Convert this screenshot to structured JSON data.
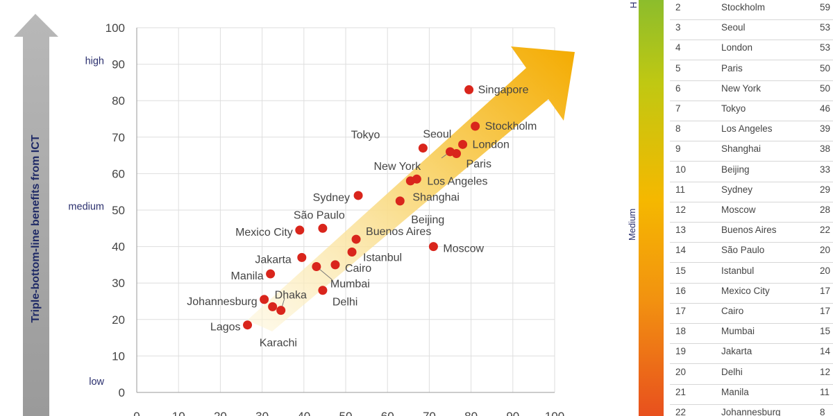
{
  "chart_data": {
    "type": "scatter",
    "ylabel": "Triple-bottom-line benefits from ICT",
    "ylim": [
      0,
      100
    ],
    "xlim": [
      0,
      100
    ],
    "y_ticks": [
      0,
      10,
      20,
      30,
      40,
      50,
      60,
      70,
      80,
      90,
      100
    ],
    "x_ticks": [
      0,
      10,
      20,
      30,
      40,
      50,
      60,
      70,
      80,
      90,
      100
    ],
    "y_level_labels": [
      {
        "text": "high",
        "y": 91
      },
      {
        "text": "medium",
        "y": 51
      },
      {
        "text": "low",
        "y": 3
      }
    ],
    "point_color": "#d9251c",
    "points": [
      {
        "label": "Singapore",
        "x": 79.5,
        "y": 83
      },
      {
        "label": "Stockholm",
        "x": 81,
        "y": 73
      },
      {
        "label": "Seoul",
        "x": 68.5,
        "y": 67
      },
      {
        "label": "London",
        "x": 78,
        "y": 68
      },
      {
        "label": "Paris",
        "x": 76.5,
        "y": 65.5
      },
      {
        "label": "",
        "x": 75,
        "y": 66
      },
      {
        "label": "Tokyo",
        "x": 0,
        "y": 0,
        "hidden": true
      },
      {
        "label": "New York",
        "x": 0,
        "y": 0,
        "hidden": true
      },
      {
        "label": "Los Angeles",
        "x": 67,
        "y": 58.5
      },
      {
        "label": "",
        "x": 65.5,
        "y": 58
      },
      {
        "label": "Shanghai",
        "x": 0,
        "y": 0,
        "hidden": true
      },
      {
        "label": "Beijing",
        "x": 63,
        "y": 52.5
      },
      {
        "label": "Sydney",
        "x": 53,
        "y": 54
      },
      {
        "label": "Moscow",
        "x": 71,
        "y": 40
      },
      {
        "label": "São Paulo",
        "x": 44.5,
        "y": 45
      },
      {
        "label": "Mexico City",
        "x": 39,
        "y": 44.5
      },
      {
        "label": "Buenos Aires",
        "x": 52.5,
        "y": 42
      },
      {
        "label": "Istanbul",
        "x": 51.5,
        "y": 38.5
      },
      {
        "label": "Jakarta",
        "x": 39.5,
        "y": 37
      },
      {
        "label": "Cairo",
        "x": 47.5,
        "y": 35
      },
      {
        "label": "Mumbai",
        "x": 43,
        "y": 34.5
      },
      {
        "label": "Manila",
        "x": 32,
        "y": 32.5
      },
      {
        "label": "Delhi",
        "x": 44.5,
        "y": 28
      },
      {
        "label": "Johannesburg",
        "x": 30.5,
        "y": 25.5
      },
      {
        "label": "Dhaka",
        "x": 32.5,
        "y": 23.5
      },
      {
        "label": "Karachi",
        "x": 34.5,
        "y": 22.5
      },
      {
        "label": "Lagos",
        "x": 26.5,
        "y": 18.5
      }
    ]
  },
  "ranking": {
    "side_labels": [
      "H",
      "Medium"
    ],
    "rows": [
      {
        "rank": "2",
        "city": "Stockholm",
        "score": "59"
      },
      {
        "rank": "3",
        "city": "Seoul",
        "score": "53"
      },
      {
        "rank": "4",
        "city": "London",
        "score": "53"
      },
      {
        "rank": "5",
        "city": "Paris",
        "score": "50"
      },
      {
        "rank": "6",
        "city": "New York",
        "score": "50"
      },
      {
        "rank": "7",
        "city": "Tokyo",
        "score": "46"
      },
      {
        "rank": "8",
        "city": "Los Angeles",
        "score": "39"
      },
      {
        "rank": "9",
        "city": "Shanghai",
        "score": "38"
      },
      {
        "rank": "10",
        "city": "Beijing",
        "score": "33"
      },
      {
        "rank": "11",
        "city": "Sydney",
        "score": "29"
      },
      {
        "rank": "12",
        "city": "Moscow",
        "score": "28"
      },
      {
        "rank": "13",
        "city": "Buenos Aires",
        "score": "22"
      },
      {
        "rank": "14",
        "city": "São Paulo",
        "score": "20"
      },
      {
        "rank": "15",
        "city": "Istanbul",
        "score": "20"
      },
      {
        "rank": "16",
        "city": "Mexico City",
        "score": "17"
      },
      {
        "rank": "17",
        "city": "Cairo",
        "score": "17"
      },
      {
        "rank": "18",
        "city": "Mumbai",
        "score": "15"
      },
      {
        "rank": "19",
        "city": "Jakarta",
        "score": "14"
      },
      {
        "rank": "20",
        "city": "Delhi",
        "score": "12"
      },
      {
        "rank": "21",
        "city": "Manila",
        "score": "11"
      },
      {
        "rank": "22",
        "city": "Johannesburg",
        "score": "8"
      }
    ]
  }
}
